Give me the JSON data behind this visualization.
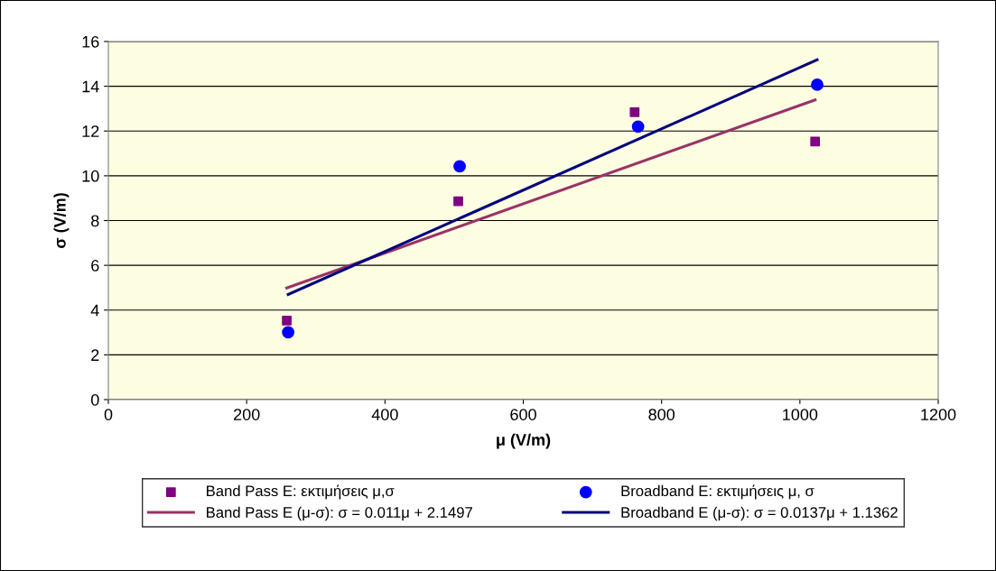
{
  "chart_data": {
    "type": "scatter",
    "xlabel": "μ (V/m)",
    "ylabel": "σ (V/m)",
    "xlim": [
      0,
      1200
    ],
    "xticks": [
      0,
      200,
      400,
      600,
      800,
      1000,
      1200
    ],
    "ylim": [
      0,
      16
    ],
    "yticks": [
      0,
      2,
      4,
      6,
      8,
      10,
      12,
      14,
      16
    ],
    "grid": "y",
    "legend": "bottom",
    "series": [
      {
        "name": "Band Pass E: εκτιμήσεις μ,σ",
        "marker": "square",
        "color": "#800080",
        "x": [
          258,
          506,
          761,
          1022
        ],
        "values": [
          3.53,
          8.86,
          12.84,
          11.53
        ]
      },
      {
        "name": "Band Pass E (μ-σ): σ = 0.011μ + 2.1497",
        "type": "line",
        "marker": "none",
        "color": "#993366",
        "x": [
          258,
          1022
        ],
        "values": [
          4.99,
          13.39
        ]
      },
      {
        "name": "Broadband E: εκτιμήσεις μ, σ",
        "marker": "circle",
        "color": "#0000ff",
        "x": [
          260,
          508,
          766,
          1025
        ],
        "values": [
          3.01,
          10.42,
          12.2,
          14.07
        ]
      },
      {
        "name": "Broadband E (μ-σ): σ = 0.0137μ + 1.1362",
        "type": "line",
        "marker": "none",
        "color": "#000080",
        "x": [
          260,
          1025
        ],
        "values": [
          4.7,
          15.18
        ]
      }
    ]
  }
}
